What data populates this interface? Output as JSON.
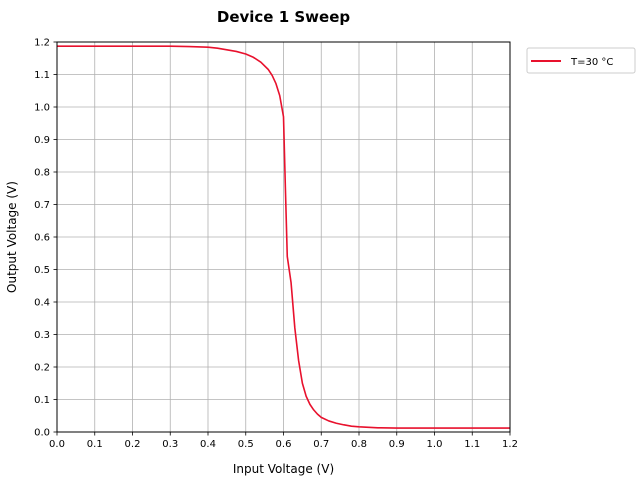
{
  "chart_data": {
    "type": "line",
    "title": "Device 1 Sweep",
    "xlabel": "Input Voltage (V)",
    "ylabel": "Output Voltage (V)",
    "xlim": [
      0.0,
      1.2
    ],
    "ylim": [
      0.0,
      1.2
    ],
    "xticks": [
      "0.0",
      "0.1",
      "0.2",
      "0.3",
      "0.4",
      "0.5",
      "0.6",
      "0.7",
      "0.8",
      "0.9",
      "1.0",
      "1.1",
      "1.2"
    ],
    "yticks": [
      "0.0",
      "0.1",
      "0.2",
      "0.3",
      "0.4",
      "0.5",
      "0.6",
      "0.7",
      "0.8",
      "0.9",
      "1.0",
      "1.1",
      "1.2"
    ],
    "grid": true,
    "legend_position": "outside-top-right",
    "series": [
      {
        "name": "T=30 °C",
        "color": "#e8112d",
        "x": [
          0.0,
          0.05,
          0.1,
          0.15,
          0.2,
          0.25,
          0.3,
          0.35,
          0.4,
          0.425,
          0.45,
          0.475,
          0.5,
          0.52,
          0.54,
          0.56,
          0.57,
          0.58,
          0.59,
          0.6,
          0.605,
          0.61,
          0.62,
          0.63,
          0.64,
          0.65,
          0.66,
          0.67,
          0.68,
          0.69,
          0.7,
          0.72,
          0.74,
          0.76,
          0.78,
          0.8,
          0.85,
          0.9,
          0.95,
          1.0,
          1.05,
          1.1,
          1.15,
          1.2
        ],
        "y": [
          1.187,
          1.187,
          1.187,
          1.187,
          1.187,
          1.187,
          1.187,
          1.186,
          1.184,
          1.181,
          1.176,
          1.171,
          1.163,
          1.153,
          1.138,
          1.115,
          1.097,
          1.072,
          1.035,
          0.97,
          0.75,
          0.54,
          0.46,
          0.32,
          0.22,
          0.15,
          0.11,
          0.085,
          0.068,
          0.055,
          0.045,
          0.034,
          0.027,
          0.022,
          0.018,
          0.016,
          0.013,
          0.012,
          0.012,
          0.012,
          0.012,
          0.012,
          0.012,
          0.012
        ]
      }
    ]
  }
}
